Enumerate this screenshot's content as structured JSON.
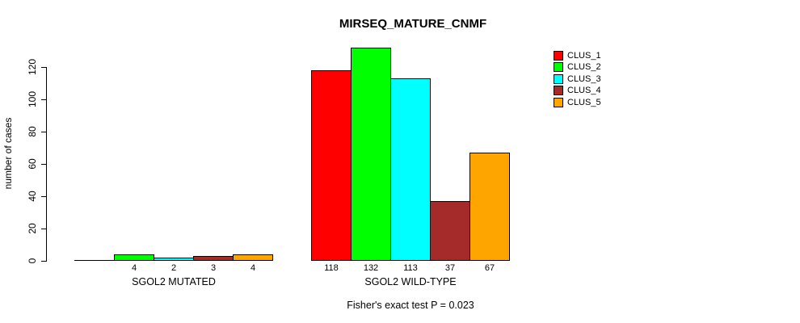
{
  "chart_data": {
    "type": "bar",
    "title": "MIRSEQ_MATURE_CNMF",
    "ylabel": "number of cases",
    "xlabel": "",
    "annotation": "Fisher's exact test P = 0.023",
    "ylim": [
      0,
      132
    ],
    "yticks": [
      0,
      20,
      40,
      60,
      80,
      100,
      120
    ],
    "grid": "off",
    "legend_position": "top-right",
    "categories": [
      "SGOL2 MUTATED",
      "SGOL2 WILD-TYPE"
    ],
    "series": [
      {
        "name": "CLUS_1",
        "color": "#ff0000",
        "values": [
          0,
          118
        ],
        "bar_labels": [
          "",
          "118"
        ]
      },
      {
        "name": "CLUS_2",
        "color": "#00ff00",
        "values": [
          4,
          132
        ],
        "bar_labels": [
          "4",
          "132"
        ]
      },
      {
        "name": "CLUS_3",
        "color": "#00ffff",
        "values": [
          2,
          113
        ],
        "bar_labels": [
          "2",
          "113"
        ]
      },
      {
        "name": "CLUS_4",
        "color": "#a52a2a",
        "values": [
          3,
          37
        ],
        "bar_labels": [
          "3",
          "37"
        ]
      },
      {
        "name": "CLUS_5",
        "color": "#ffa500",
        "values": [
          4,
          67
        ],
        "bar_labels": [
          "4",
          "67"
        ]
      }
    ]
  }
}
